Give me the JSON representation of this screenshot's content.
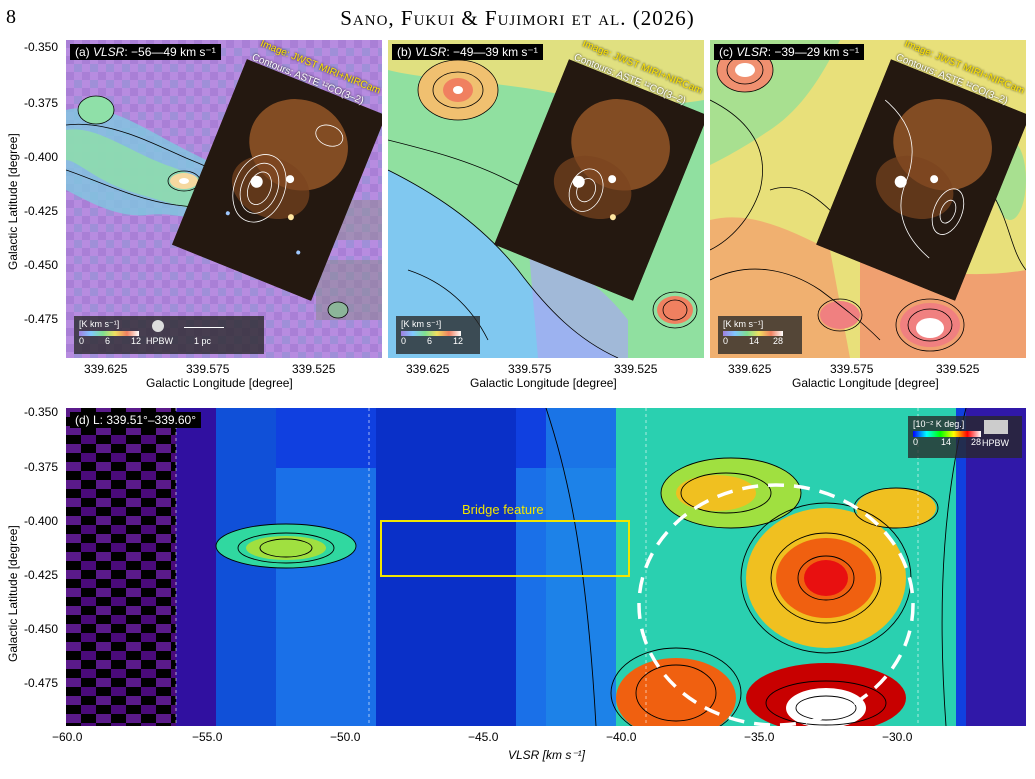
{
  "header": {
    "page_number": "8",
    "running_title": "Sano, Fukui & Fujimori et al. (2026)"
  },
  "top_panels": [
    {
      "tag_prefix": "(a) ",
      "tag_vlsr": "VLSR",
      "tag_range": ": −56—49 km s⁻¹",
      "image_label": "Image: JWST MIRI+NIRCam",
      "contour_label": "Contours: ASTE ¹²CO(3–2)",
      "colorbar_unit": "[K km s⁻¹]",
      "colorbar_ticks": [
        "0",
        "6",
        "12"
      ],
      "hpbw": "HPBW",
      "scalebar": "1 pc"
    },
    {
      "tag_prefix": "(b) ",
      "tag_vlsr": "VLSR",
      "tag_range": ": −49—39 km s⁻¹",
      "image_label": "Image: JWST MIRI+NIRCam",
      "contour_label": "Contours: ASTE ¹²CO(3–2)",
      "colorbar_unit": "[K km s⁻¹]",
      "colorbar_ticks": [
        "0",
        "6",
        "12"
      ]
    },
    {
      "tag_prefix": "(c) ",
      "tag_vlsr": "VLSR",
      "tag_range": ": −39—29 km s⁻¹",
      "image_label": "Image: JWST MIRI+NIRCam",
      "contour_label": "Contours: ASTE ¹²CO(3–2)",
      "colorbar_unit": "[K km s⁻¹]",
      "colorbar_ticks": [
        "0",
        "14",
        "28"
      ]
    }
  ],
  "top_axes": {
    "ylabel": "Galactic Latitude [degree]",
    "yticks": [
      "-0.350",
      "-0.375",
      "-0.400",
      "-0.425",
      "-0.450",
      "-0.475"
    ],
    "xlabel": "Galactic Longitude [degree]",
    "xticks": [
      "339.625",
      "339.575",
      "339.525"
    ]
  },
  "bottom_panel": {
    "tag": "(d) L: 339.51°–339.60°",
    "bridge_label": "Bridge feature",
    "colorbar_unit": "[10⁻² K deg.]",
    "colorbar_ticks": [
      "0",
      "14",
      "28"
    ],
    "hpbw": "HPBW",
    "ylabel": "Galactic Latitude [degree]",
    "yticks": [
      "-0.350",
      "-0.375",
      "-0.400",
      "-0.425",
      "-0.450",
      "-0.475"
    ],
    "xlabel": "VLSR [km s⁻¹]",
    "xticks": [
      "−60.0",
      "−55.0",
      "−50.0",
      "−45.0",
      "−40.0",
      "−35.0",
      "−30.0"
    ]
  },
  "colors": {
    "bridge_box": "#f2e600",
    "ellipse": "#ffffff",
    "jwst_label": "#ffe400"
  }
}
